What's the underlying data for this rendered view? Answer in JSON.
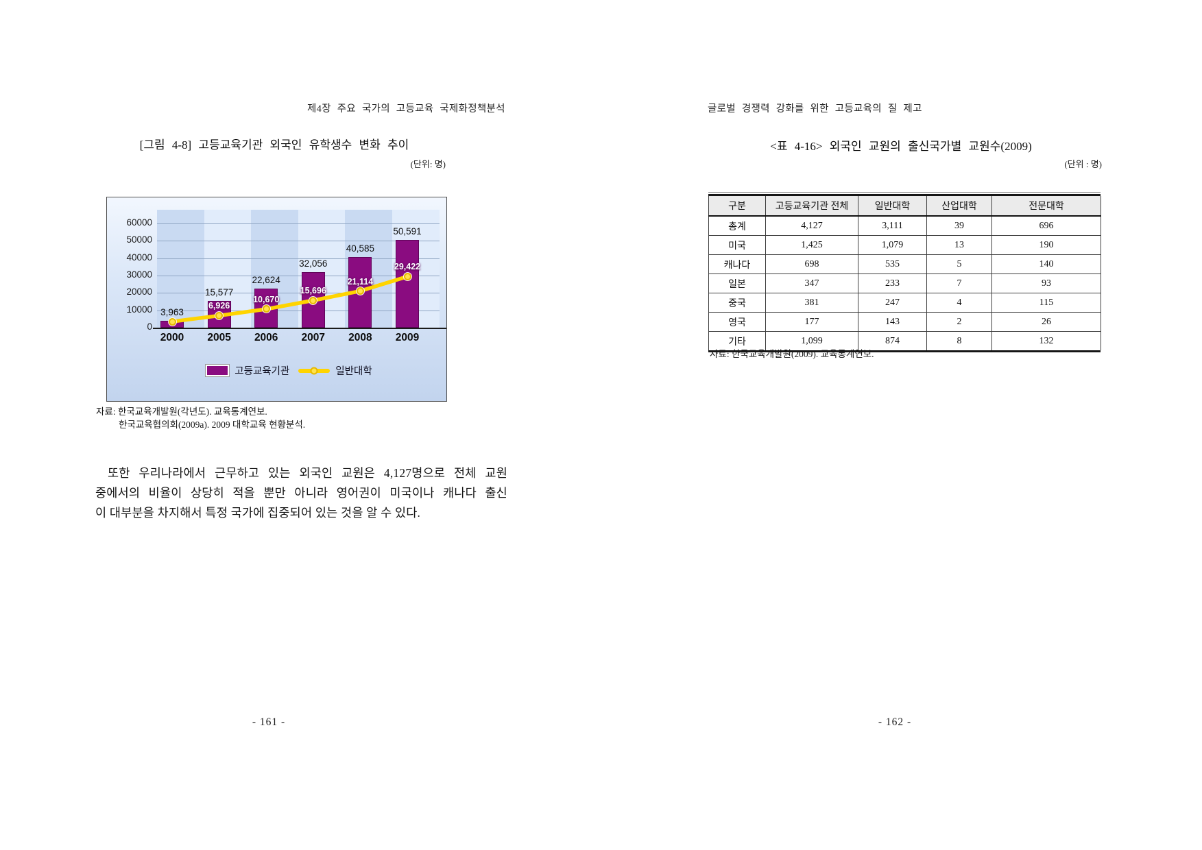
{
  "page_left": {
    "header": "제4장 주요 국가의 고등교육 국제화정책분석",
    "figure_title": "[그림 4-8] 고등교육기관 외국인 유학생수 변화 추이",
    "unit_label": "(단위: 명)",
    "source_lines": [
      "자료: 한국교육개발원(각년도). 교육통계연보.",
      "한국교육협의회(2009a). 2009 대학교육 현황분석."
    ],
    "paragraph_lines": [
      "또한 우리나라에서 근무하고 있는 외국인 교원은 4,127명으로 전체 교원",
      "중에서의 비율이 상당히 적을 뿐만 아니라 영어권이 미국이나 캐나다 출신",
      "이 대부분을 차지해서 특정 국가에 집중되어 있는 것을 알 수 있다."
    ],
    "page_number": "- 161 -"
  },
  "page_right": {
    "header": "글로벌 경쟁력 강화를 위한 고등교육의 질 제고",
    "table_title": "<표 4-16> 외국인 교원의 출신국가별 교원수(2009)",
    "unit_label": "(단위 : 명)",
    "table": {
      "columns": [
        "구분",
        "고등교육기관 전체",
        "일반대학",
        "산업대학",
        "전문대학"
      ],
      "rows": [
        [
          "총계",
          "4,127",
          "3,111",
          "39",
          "696"
        ],
        [
          "미국",
          "1,425",
          "1,079",
          "13",
          "190"
        ],
        [
          "캐나다",
          "698",
          "535",
          "5",
          "140"
        ],
        [
          "일본",
          "347",
          "233",
          "7",
          "93"
        ],
        [
          "중국",
          "381",
          "247",
          "4",
          "115"
        ],
        [
          "영국",
          "177",
          "143",
          "2",
          "26"
        ],
        [
          "기타",
          "1,099",
          "874",
          "8",
          "132"
        ]
      ]
    },
    "source": "자료: 한국교육개발원(2009). 교육통계연보.",
    "page_number": "- 162 -"
  },
  "chart_data": {
    "type": "bar",
    "subtype": "bar-and-line-combo",
    "title": "[그림 4-8] 고등교육기관 외국인 유학생수 변화 추이",
    "unit": "명",
    "categories": [
      "2000",
      "2005",
      "2006",
      "2007",
      "2008",
      "2009"
    ],
    "series": [
      {
        "name": "고등교육기관",
        "type": "bar",
        "color": "#8a0c80",
        "values": [
          3963,
          15577,
          22624,
          32056,
          40585,
          50591
        ],
        "labels": [
          "3,963",
          "15,577",
          "22,624",
          "32,056",
          "40,585",
          "50,591"
        ]
      },
      {
        "name": "일반대학",
        "type": "line",
        "color": "#ffd400",
        "values": [
          3500,
          6926,
          10670,
          15696,
          21114,
          29422
        ],
        "labels": [
          "",
          "6,926",
          "10,670",
          "15,696",
          "21,114",
          "29,422"
        ]
      }
    ],
    "ylim": [
      0,
      60000
    ],
    "ytick_step": 10000,
    "yticks": [
      "0",
      "10000",
      "20000",
      "30000",
      "40000",
      "50000",
      "60000"
    ],
    "grid": true,
    "legend_position": "bottom"
  }
}
